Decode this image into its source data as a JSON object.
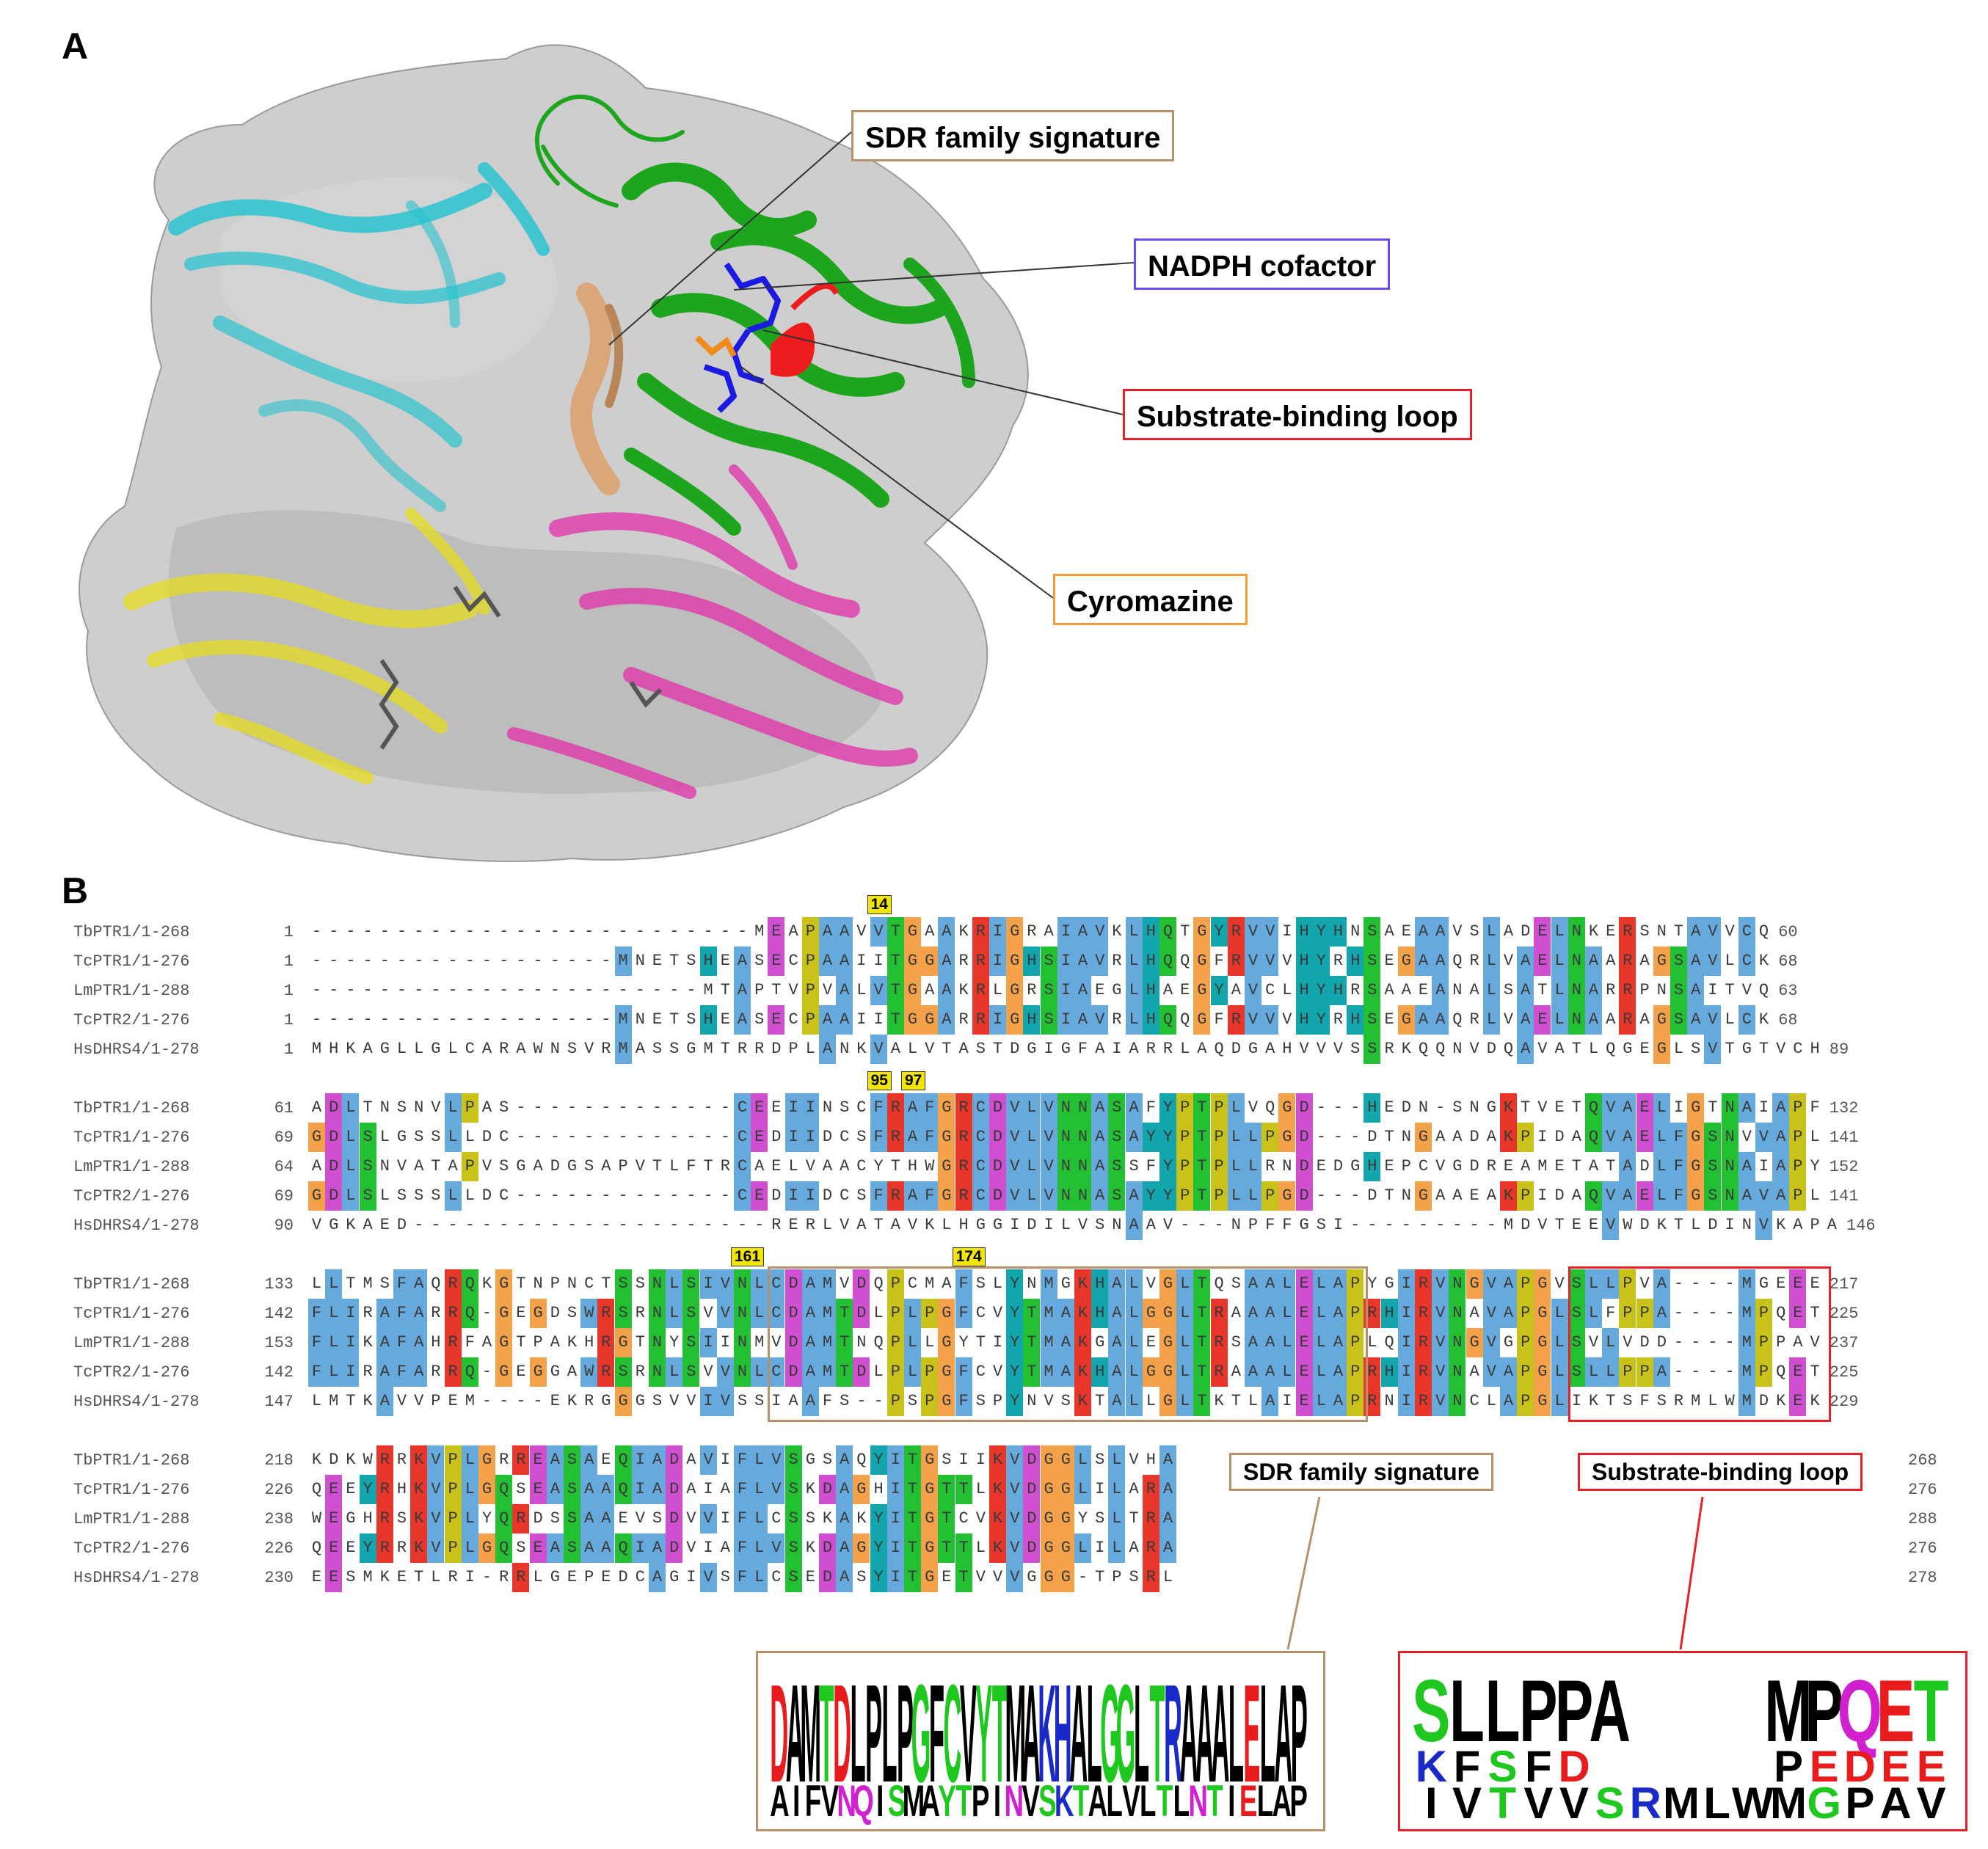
{
  "panels": {
    "a": {
      "letter": "A"
    },
    "b": {
      "letter": "B"
    }
  },
  "callouts": [
    {
      "id": "sdr",
      "label": "SDR family signature",
      "color": "#b8906a"
    },
    {
      "id": "nadph",
      "label": "NADPH cofactor",
      "color": "#6a4cf0"
    },
    {
      "id": "loop",
      "label": "Substrate-binding loop",
      "color": "#e8202a"
    },
    {
      "id": "cyro",
      "label": "Cyromazine",
      "color": "#f39c3a"
    }
  ],
  "alignment": {
    "residue_colors": {
      "A": "#66aadd",
      "I": "#66aadd",
      "L": "#66aadd",
      "M": "#66aadd",
      "F": "#66aadd",
      "W": "#66aadd",
      "V": "#66aadd",
      "C": "#66aadd",
      "K": "#e8362a",
      "R": "#e8362a",
      "E": "#d04fd0",
      "D": "#d04fd0",
      "N": "#22c032",
      "Q": "#22c032",
      "S": "#22c032",
      "T": "#22c032",
      "G": "#f4a24a",
      "P": "#c8c21a",
      "H": "#12a5ac",
      "Y": "#12a5ac"
    },
    "blocks": [
      {
        "position_markers": [
          {
            "label": "14",
            "col": 33
          }
        ],
        "rows": [
          {
            "name": "TbPTR1/1-268",
            "start": "1",
            "end": "60",
            "seq": "--------------------------MEAPAAVVTGAAKRIGRAIAVKLHQTGYRVVIHYHNSAEAAVSLADELNKERSNTAVVCQ"
          },
          {
            "name": "TcPTR1/1-276",
            "start": "1",
            "end": "68",
            "seq": "------------------MNETSHEASECPAAIITGGARRIGHSIAVRLHQQGFRVVVHYRHSEGAAQRLVAELNAARAGSAVLCK"
          },
          {
            "name": "LmPTR1/1-288",
            "start": "1",
            "end": "63",
            "seq": "-----------------------MTAPTVPVALVTGAAKRLGRSIAEGLHAEGYAVCLHYHRSAAEANALSATLNARRPNSAITVQ"
          },
          {
            "name": "TcPTR2/1-276",
            "start": "1",
            "end": "68",
            "seq": "------------------MNETSHEASECPAAIITGGARRIGHSIAVRLHQQGFRVVVHYRHSEGAAQRLVAELNAARAGSAVLCK"
          },
          {
            "name": "HsDHRS4/1-278",
            "start": "1",
            "end": "89",
            "seq": "MHKAGLLGLCARAWNSVRMASSGMTRRDPLANKVALVTASTDGIGFAIARRLAQDGAHVVVSSRKQQNVDQAVATLQGEGLSVTGTVCH"
          }
        ]
      },
      {
        "position_markers": [
          {
            "label": "95",
            "col": 33
          },
          {
            "label": "97",
            "col": 35
          }
        ],
        "rows": [
          {
            "name": "TbPTR1/1-268",
            "start": "61",
            "end": "132",
            "seq": "ADLTNSNVLPAS-------------CEEIINSCFRAFGRCDVLVNNASAFYPTPLVQGD---HEDN-SNGKTVETQVAELIGTNAIAPF"
          },
          {
            "name": "TcPTR1/1-276",
            "start": "69",
            "end": "141",
            "seq": "GDLSLGSSLLDC-------------CEDIIDCSFRAFGRCDVLVNNASAYYPTPLLPGD---DTNGAADAKPIDAQVAELFGSNVVAPL"
          },
          {
            "name": "LmPTR1/1-288",
            "start": "64",
            "end": "152",
            "seq": "ADLSNVATAPVSGADGSAPVTLFTRCAELVAACYTHWGRCDVLVNNASSFYPTPLLRNDEDGHEPCVGDREAMETATADLFGSNAIAPY"
          },
          {
            "name": "TcPTR2/1-276",
            "start": "69",
            "end": "141",
            "seq": "GDLSLSSSLLDC-------------CEDIIDCSFRAFGRCDVLVNNASAYYPTPLLPGD---DTNGAAEAKPIDAQVAELFGSNAVAPL"
          },
          {
            "name": "HsDHRS4/1-278",
            "start": "90",
            "end": "146",
            "seq": "VGKAED---------------------RERLVATAVKLHGGIDILVSNAAV---NPFFGSI---------MDVTEEVWDKTLDINVKAPA"
          }
        ]
      },
      {
        "position_markers": [
          {
            "label": "161",
            "col": 25
          },
          {
            "label": "174",
            "col": 38
          }
        ],
        "rows": [
          {
            "name": "TbPTR1/1-268",
            "start": "133",
            "end": "217",
            "seq": "LLTMSFAQRQKGTNPNCTSSNLSIVNLCDAMVDQPCMAFSLYNMGKHALVGLTQSAALELAPYGIRVNGVAPGVSLLPVA----MGEEE"
          },
          {
            "name": "TcPTR1/1-276",
            "start": "142",
            "end": "225",
            "seq": "FLIRAFARRQ-GEGDSWRSRNLSVVNLCDAMTDLPLPGFCVYTMAKHALGGLTRAAALELAPRHIRVNAVAPGLSLFPPA----MPQET"
          },
          {
            "name": "LmPTR1/1-288",
            "start": "153",
            "end": "237",
            "seq": "FLIKAFAHRFAGTPAKHRGTNYSIINMVDAMTNQPLLGYTIYTMAKGALEGLTRSAALELAPLQIRVNGVGPGLSVLVDD----MPPAV"
          },
          {
            "name": "TcPTR2/1-276",
            "start": "142",
            "end": "225",
            "seq": "FLIRAFARRQ-GEGGAWRSRNLSVVNLCDAMTDLPLPGFCVYTMAKHALGGLTRAAALELAPRHIRVNAVAPGLSLLPPA----MPQET"
          },
          {
            "name": "HsDHRS4/1-278",
            "start": "147",
            "end": "229",
            "seq": "LMTKAVVPEM----EKRGGGSVVIVSSIAAFS--PSPGFSPYNVSKTALLGLTKTLAIELAPRNIRVNCLAPGLIKTSFSRMLWMDKEK"
          }
        ]
      },
      {
        "position_markers": [],
        "rows": [
          {
            "name": "TbPTR1/1-268",
            "start": "218",
            "end": "268",
            "seq": "KDKWRRKVPLGRREASAEQIADAVIFLVSGSAQYITGSIIKVDGGLSLVHA"
          },
          {
            "name": "TcPTR1/1-276",
            "start": "226",
            "end": "276",
            "seq": "QEEYRHKVPLGQSEASAAQIADAIAFLVSKDAGHITGTTLKVDGGLILARA"
          },
          {
            "name": "LmPTR1/1-288",
            "start": "238",
            "end": "288",
            "seq": "WEGHRSKVPLYQRDSSAAEVSDVVIFLCSSKAKYITGTCVKVDGGYSLTRA"
          },
          {
            "name": "TcPTR2/1-276",
            "start": "226",
            "end": "276",
            "seq": "QEEYRRKVPLGQSEASAAQIADVIAFLVSKDAGYITGTTLKVDGGLILARA"
          },
          {
            "name": "HsDHRS4/1-278",
            "start": "230",
            "end": "278",
            "seq": "EESMKETLRI-RRLGEPEDCAGIVSFLCSEDASYITGETVVVGGG-TPSRL"
          }
        ]
      }
    ]
  },
  "region_labels": {
    "sdr": "SDR family signature",
    "loop": "Substrate-binding  loop"
  },
  "logos": {
    "sdr": {
      "top": "DAMTDLPLPGFCVYTMAKHALGGLTRAAALELAP",
      "bottom": "AIFVNQISMAYTPINVSKTALVLTLNTIELAP"
    },
    "loop": {
      "top": "SLLPPA----MPQET",
      "mid": "KFSFD-----PEDEE",
      "bottom": "IVTVVSRMLWMGPAV"
    }
  }
}
